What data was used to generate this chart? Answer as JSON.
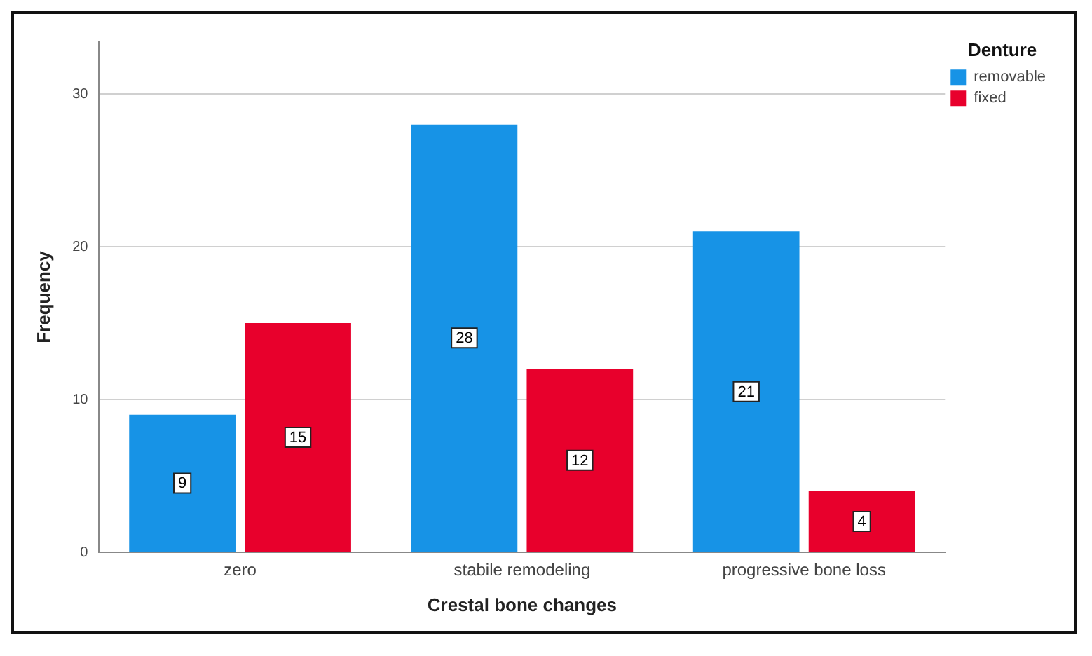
{
  "chart_data": {
    "type": "bar",
    "xlabel": "Crestal bone changes",
    "ylabel": "Frequency",
    "legend_title": "Denture",
    "categories": [
      "zero",
      "stabile remodeling",
      "progressive bone loss"
    ],
    "series": [
      {
        "name": "removable",
        "color": "#1793e6",
        "values": [
          9,
          28,
          21
        ]
      },
      {
        "name": "fixed",
        "color": "#e8002c",
        "values": [
          15,
          12,
          4
        ]
      }
    ],
    "ylim": [
      0,
      33.4
    ],
    "yticks": [
      0,
      10,
      20,
      30
    ],
    "grid": "y",
    "legend": "top right",
    "data_labels": true
  }
}
